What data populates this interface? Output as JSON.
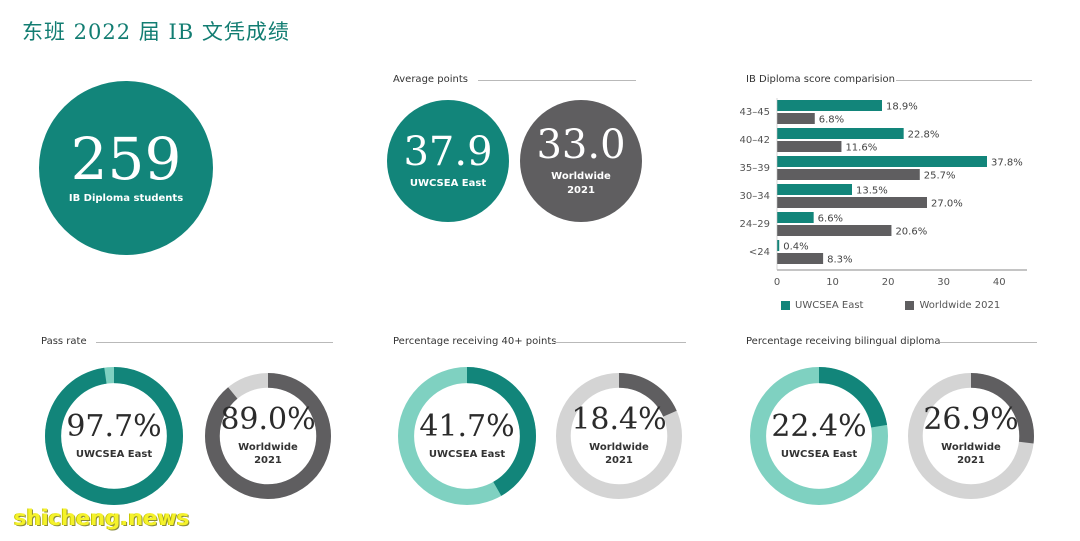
{
  "page_title": "东班 2022 届 IB 文凭成绩",
  "colors": {
    "teal": "#12857a",
    "gray": "#5f5e60",
    "light_teal": "#7fd1c1",
    "light_gray": "#d4d4d4"
  },
  "students": {
    "value": "259",
    "label": "IB Diploma students"
  },
  "average_points": {
    "title": "Average points",
    "uwcsea": {
      "value": "37.9",
      "label": "UWCSEA East"
    },
    "worldwide": {
      "value": "33.0",
      "label_line1": "Worldwide",
      "label_line2": "2021"
    }
  },
  "chart_data": [
    {
      "type": "bar",
      "orientation": "horizontal",
      "title": "IB Diploma score comparision",
      "categories": [
        "43–45",
        "40–42",
        "35–39",
        "30–34",
        "24–29",
        "<24"
      ],
      "series": [
        {
          "name": "UWCSEA East",
          "color": "#12857a",
          "values": [
            18.9,
            22.8,
            37.8,
            13.5,
            6.6,
            0.4
          ]
        },
        {
          "name": "Worldwide 2021",
          "color": "#5f5e60",
          "values": [
            6.8,
            11.6,
            25.7,
            27.0,
            20.6,
            8.3
          ]
        }
      ],
      "value_labels": {
        "UWCSEA East": [
          "18.9%",
          "22.8%",
          "37.8%",
          "13.5%",
          "6.6%",
          "0.4%"
        ],
        "Worldwide 2021": [
          "6.8%",
          "11.6%",
          "25.7%",
          "27.0%",
          "20.6%",
          "8.3%"
        ]
      },
      "xticks": [
        0,
        10,
        20,
        30,
        40
      ],
      "xlim": [
        0,
        45
      ],
      "legend": "bottom"
    },
    {
      "type": "pie",
      "variant": "donut",
      "title": "Pass rate",
      "items": [
        {
          "value": 97.7,
          "display": "97.7%",
          "label_line1": "UWCSEA East",
          "label_line2": "",
          "fill": "#12857a",
          "rest": "#7fd1c1"
        },
        {
          "value": 89.0,
          "display": "89.0%",
          "label_line1": "Worldwide",
          "label_line2": "2021",
          "fill": "#5f5e60",
          "rest": "#d4d4d4"
        }
      ]
    },
    {
      "type": "pie",
      "variant": "donut",
      "title": "Percentage receiving 40+ points",
      "items": [
        {
          "value": 41.7,
          "display": "41.7%",
          "label_line1": "UWCSEA East",
          "label_line2": "",
          "fill": "#12857a",
          "rest": "#7fd1c1"
        },
        {
          "value": 18.4,
          "display": "18.4%",
          "label_line1": "Worldwide",
          "label_line2": "2021",
          "fill": "#5f5e60",
          "rest": "#d4d4d4"
        }
      ]
    },
    {
      "type": "pie",
      "variant": "donut",
      "title": "Percentage receiving bilingual diploma",
      "items": [
        {
          "value": 22.4,
          "display": "22.4%",
          "label_line1": "UWCSEA East",
          "label_line2": "",
          "fill": "#12857a",
          "rest": "#7fd1c1"
        },
        {
          "value": 26.9,
          "display": "26.9%",
          "label_line1": "Worldwide",
          "label_line2": "2021",
          "fill": "#5f5e60",
          "rest": "#d4d4d4"
        }
      ]
    }
  ],
  "watermark": "shicheng.news"
}
